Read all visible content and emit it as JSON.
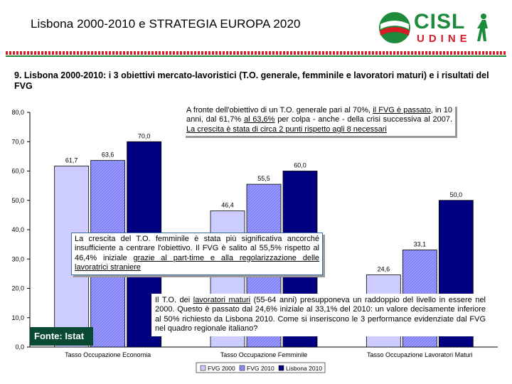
{
  "header": {
    "title": "Lisbona 2000-2010 e STRATEGIA EUROPA 2020",
    "logo_main": "CISL",
    "logo_sub": "UDINE"
  },
  "subtitle": "9. Lisbona 2000-2010: i 3 obiettivi mercato-lavoristici (T.O. generale, femminile e lavoratori maturi) e i risultati del FVG",
  "colors": {
    "fvg2000": "#ccccff",
    "fvg2010": "#9999ff",
    "lisbona2010": "#000080",
    "brand_green": "#1d8a3c",
    "brand_red": "#d51c24"
  },
  "chart_data": {
    "type": "bar",
    "title": "",
    "xlabel": "",
    "ylabel": "",
    "ylim": [
      0,
      80
    ],
    "yticks": [
      "0,0",
      "10,0",
      "20,0",
      "30,0",
      "40,0",
      "50,0",
      "60,0",
      "70,0",
      "80,0"
    ],
    "categories": [
      "Tasso Occupazione Economia",
      "Tasso Occupazione Femminile",
      "Tasso Occupazione Lavoratori Maturi"
    ],
    "series": [
      {
        "name": "FVG 2000",
        "values": [
          61.7,
          46.4,
          24.6
        ],
        "labels": [
          "61,7",
          "46,4",
          "24,6"
        ]
      },
      {
        "name": "FVG 2010",
        "values": [
          63.6,
          55.5,
          33.1
        ],
        "labels": [
          "63,6",
          "55,5",
          "33,1"
        ]
      },
      {
        "name": "Lisbona 2010",
        "values": [
          70.0,
          60.0,
          50.0
        ],
        "labels": [
          "70,0",
          "60,0",
          "50,0"
        ]
      }
    ],
    "legend_position": "bottom"
  },
  "callouts": {
    "general": {
      "p1": "A fronte dell'obiettivo di un T.O. generale pari al 70%, ",
      "u1": "il FVG è passato",
      "p2": ", in 10 anni, dal 61,7% ",
      "u2": "al 63,6%",
      "p3": " per colpa - anche - della crisi successiva al 2007. ",
      "u3": "La crescita è stata di circa 2 punti rispetto agli 8 necessari"
    },
    "female": {
      "p1": "La crescita del T.O. femminile è stata più significativa ancorché insufficiente a centrare l'obiettivo. Il FVG è salito al 55,5% rispetto al 46,4% iniziale ",
      "u1": "grazie al part-time e alla regolarizzazione delle lavoratrici straniere"
    },
    "mature": {
      "p1": "Il T.O. dei ",
      "u1": "lavoratori maturi",
      "p2": " (55-64 anni) presupponeva un raddoppio del livello in essere nel 2000. Questo è passato dal 24,6% iniziale al 33,1% del 2010: un valore decisamente inferiore al 50% richiesto da Lisbona 2010. Come si inseriscono le 3 performance evidenziate dal FVG nel quadro regionale italiano?"
    }
  },
  "fonte": "Fonte: Istat"
}
